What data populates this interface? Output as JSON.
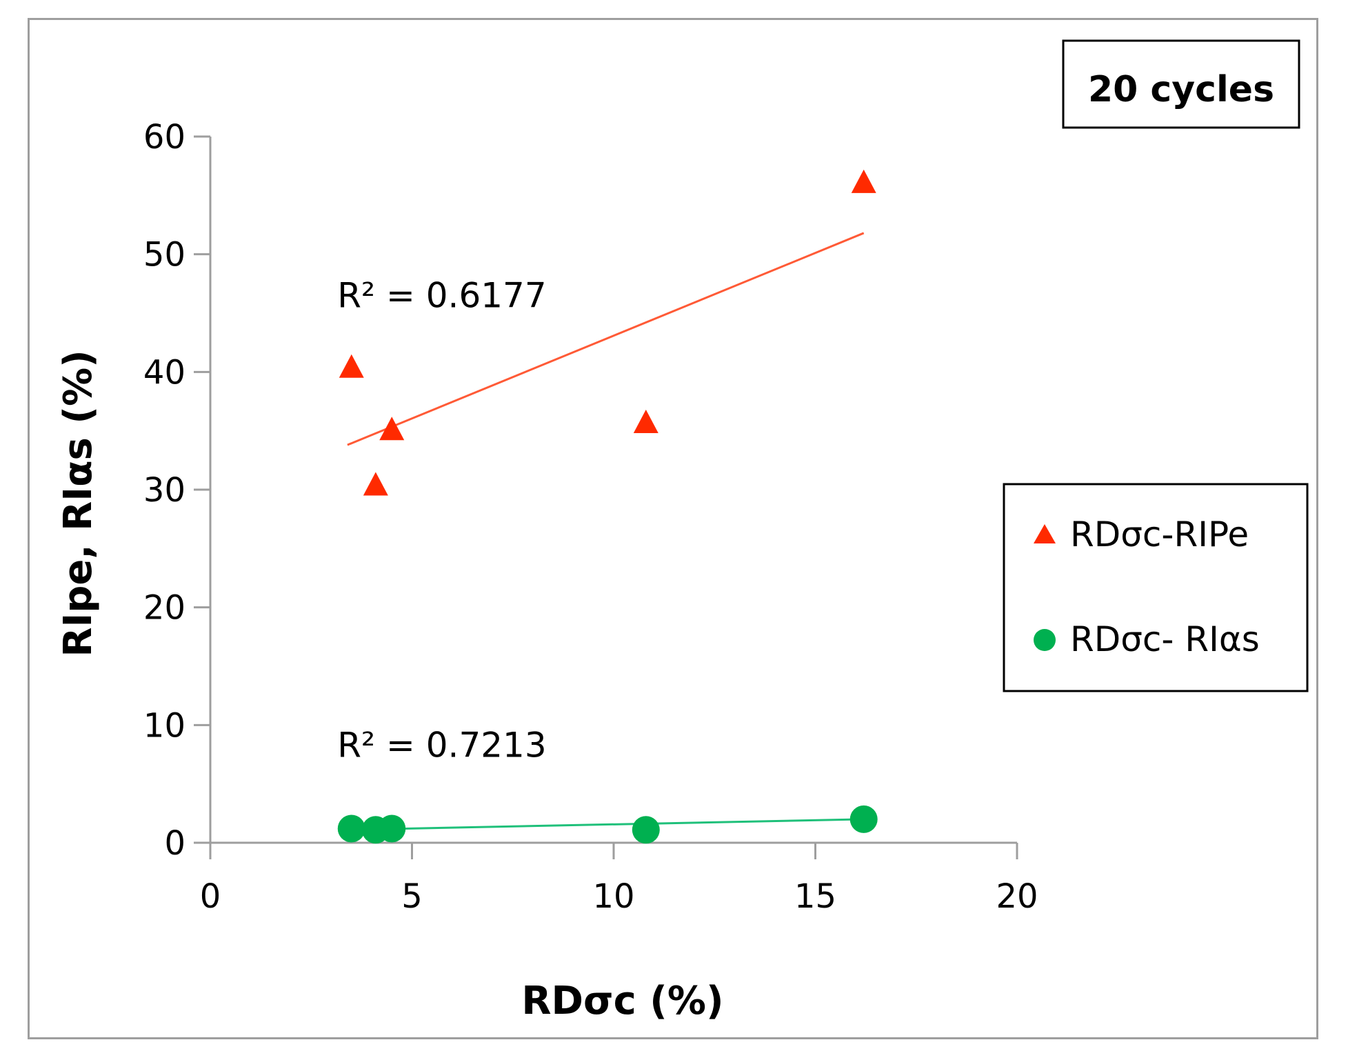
{
  "chart_data": {
    "type": "scatter",
    "title": "",
    "badge": "20 cycles",
    "xlabel": "RDσc (%)",
    "ylabel": "RIpe, RIαs (%)",
    "xlim": [
      0,
      20
    ],
    "ylim": [
      0,
      60
    ],
    "x_ticks": [
      "0",
      "5",
      "10",
      "15",
      "20"
    ],
    "y_ticks": [
      "0",
      "10",
      "20",
      "30",
      "40",
      "50",
      "60"
    ],
    "legend_position": "right",
    "series": [
      {
        "name": "RDσc-RIPe",
        "marker": "triangle",
        "color": "#ff2a00",
        "x": [
          3.5,
          4.1,
          4.5,
          10.8,
          16.2
        ],
        "y": [
          40.5,
          30.5,
          35.2,
          35.8,
          56.2
        ],
        "trendline": {
          "x": [
            3.4,
            16.2
          ],
          "y": [
            33.8,
            51.8
          ],
          "color": "#ff5a36"
        },
        "r2_label": "R² = 0.6177"
      },
      {
        "name": "RDσc- RIαs",
        "marker": "circle",
        "color": "#00b050",
        "x": [
          3.5,
          4.1,
          4.5,
          10.8,
          16.2
        ],
        "y": [
          1.2,
          1.1,
          1.2,
          1.1,
          2.0
        ],
        "trendline": {
          "x": [
            3.4,
            16.2
          ],
          "y": [
            1.1,
            2.0
          ],
          "color": "#1fc07a"
        },
        "r2_label": "R² = 0.7213"
      }
    ]
  }
}
